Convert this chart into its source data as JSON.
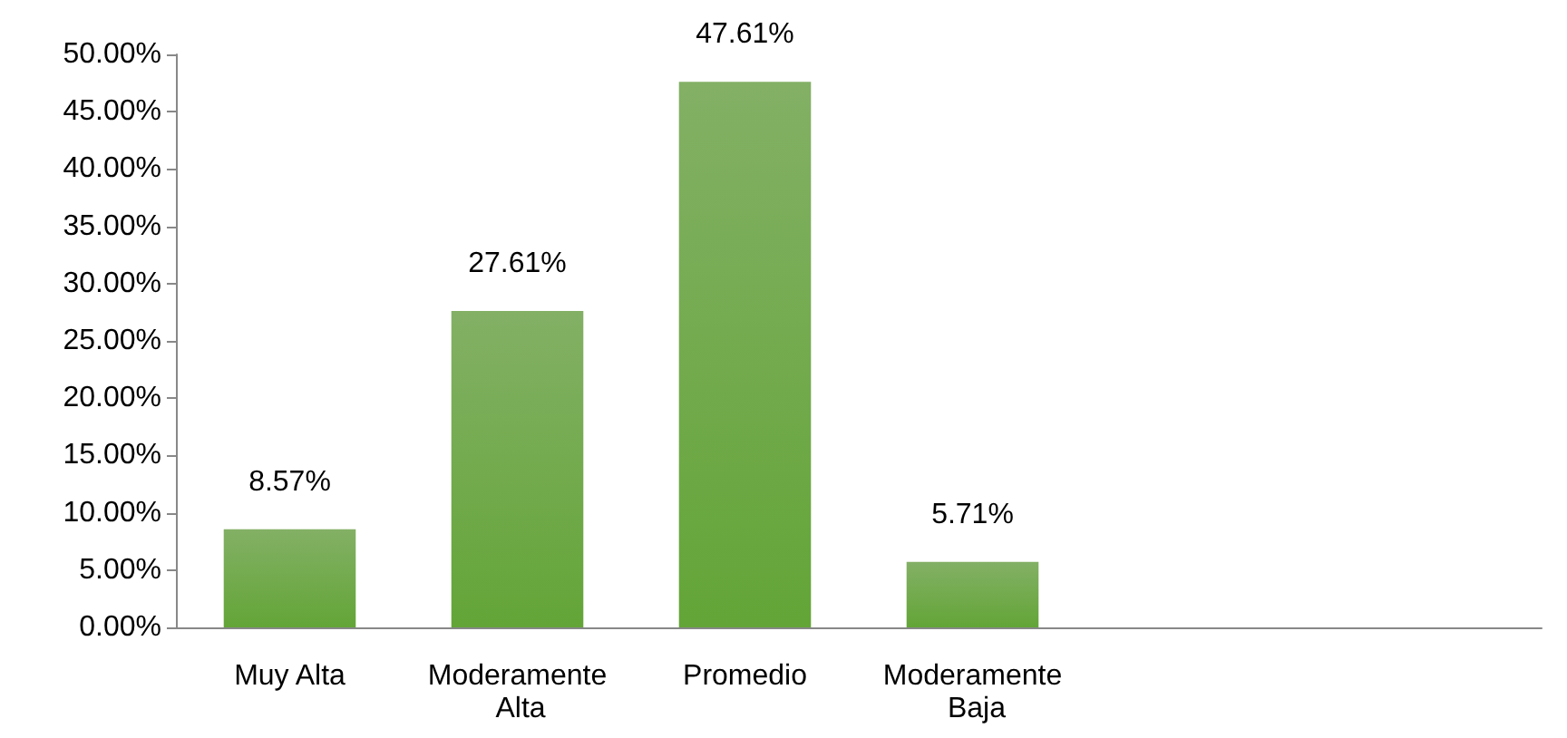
{
  "chart_data": {
    "type": "bar",
    "categories": [
      "Muy Alta",
      "Moderamente Alta",
      "Promedio",
      "Moderamente Baja",
      null,
      null
    ],
    "values": [
      8.57,
      27.61,
      47.61,
      5.71,
      null,
      null
    ],
    "value_labels": [
      "8.57%",
      "27.61%",
      "47.61%",
      "5.71%",
      null,
      null
    ],
    "color": "#5a9632",
    "ylim": [
      0,
      50
    ],
    "yticks": [
      {
        "value": 0,
        "label": "0.00%"
      },
      {
        "value": 5,
        "label": "5.00%"
      },
      {
        "value": 10,
        "label": "10.00%"
      },
      {
        "value": 15,
        "label": "15.00%"
      },
      {
        "value": 20,
        "label": "20.00%"
      },
      {
        "value": 25,
        "label": "25.00%"
      },
      {
        "value": 30,
        "label": "30.00%"
      },
      {
        "value": 35,
        "label": "35.00%"
      },
      {
        "value": 40,
        "label": "40.00%"
      },
      {
        "value": 45,
        "label": "45.00%"
      },
      {
        "value": 50,
        "label": "50.00%"
      }
    ],
    "grid": false
  }
}
